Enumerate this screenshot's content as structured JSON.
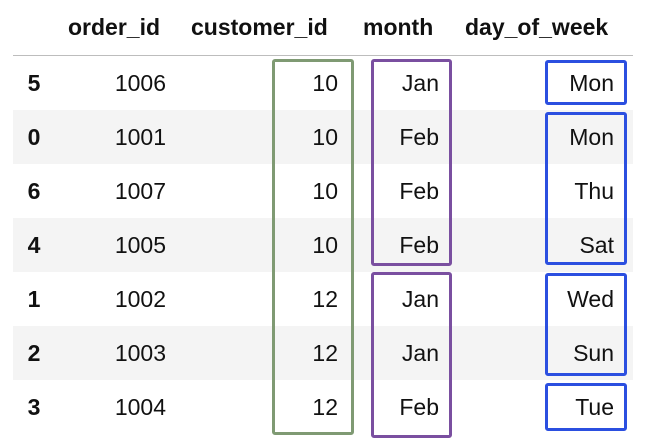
{
  "columns": {
    "order_id": "order_id",
    "customer_id": "customer_id",
    "month": "month",
    "day_of_week": "day_of_week"
  },
  "rows": [
    {
      "index": "5",
      "order_id": "1006",
      "customer_id": "10",
      "month": "Jan",
      "day_of_week": "Mon"
    },
    {
      "index": "0",
      "order_id": "1001",
      "customer_id": "10",
      "month": "Feb",
      "day_of_week": "Mon"
    },
    {
      "index": "6",
      "order_id": "1007",
      "customer_id": "10",
      "month": "Feb",
      "day_of_week": "Thu"
    },
    {
      "index": "4",
      "order_id": "1005",
      "customer_id": "10",
      "month": "Feb",
      "day_of_week": "Sat"
    },
    {
      "index": "1",
      "order_id": "1002",
      "customer_id": "12",
      "month": "Jan",
      "day_of_week": "Wed"
    },
    {
      "index": "2",
      "order_id": "1003",
      "customer_id": "12",
      "month": "Jan",
      "day_of_week": "Sun"
    },
    {
      "index": "3",
      "order_id": "1004",
      "customer_id": "12",
      "month": "Feb",
      "day_of_week": "Tue"
    }
  ],
  "colors": {
    "customer_group": "#7f9a73",
    "month_group": "#7a4fa0",
    "day_group": "#2b4fe0",
    "stripe": "#f4f4f4"
  }
}
